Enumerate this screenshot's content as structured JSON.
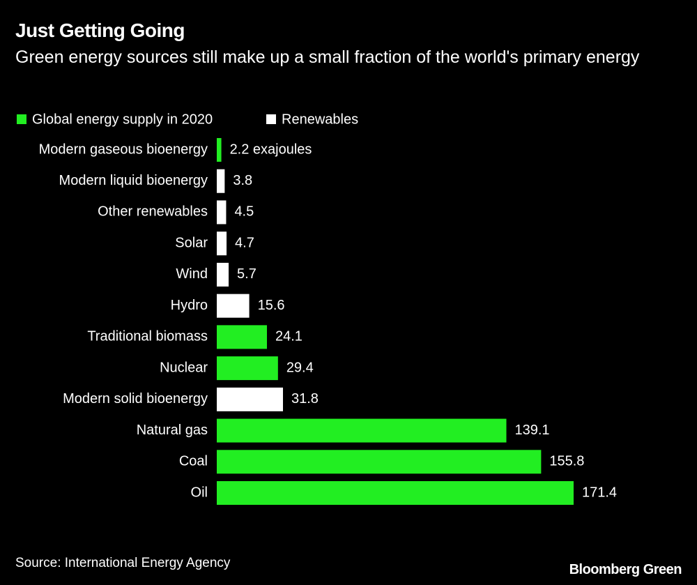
{
  "chart_data": {
    "type": "bar",
    "orientation": "horizontal",
    "title": "Just Getting Going",
    "subtitle": "Green energy sources still make up a small fraction of the world's primary energy",
    "categories": [
      "Modern gaseous bioenergy",
      "Modern liquid bioenergy",
      "Other renewables",
      "Solar",
      "Wind",
      "Hydro",
      "Traditional biomass",
      "Nuclear",
      "Modern solid bioenergy",
      "Natural gas",
      "Coal",
      "Oil"
    ],
    "series": [
      {
        "name": "Global energy supply in 2020",
        "color": "#22ee22",
        "values": [
          2.2,
          null,
          null,
          null,
          null,
          null,
          24.1,
          29.4,
          null,
          139.1,
          155.8,
          171.4
        ],
        "value_labels": [
          "2.2 exajoules",
          null,
          null,
          null,
          null,
          null,
          null,
          null,
          null,
          null,
          null,
          null
        ]
      },
      {
        "name": "Renewables",
        "color": "#ffffff",
        "values": [
          null,
          3.8,
          4.5,
          4.7,
          5.7,
          15.6,
          null,
          null,
          31.8,
          null,
          null,
          null
        ]
      }
    ],
    "source": "Source: International Energy Agency",
    "brand": "Bloomberg Green"
  }
}
